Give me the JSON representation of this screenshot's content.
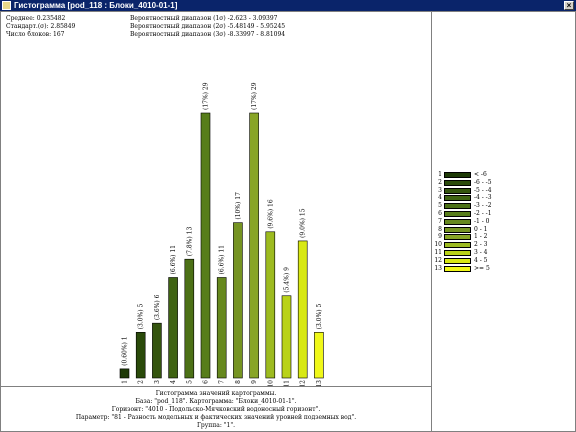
{
  "window": {
    "title": "Гистограмма [pod_118 : Блоки_4010-01-1]",
    "close_glyph": "×",
    "app_icon": "histogram-app-icon"
  },
  "stats": {
    "mean": "Среднее: 0.235482",
    "stddev": "Стандарт.(σ): 2.85849",
    "count": "Число блоков: 167",
    "range1": "Вероятностный диапазон (1σ) -2.623 - 3.09397",
    "range2": "Вероятностный диапазон (2σ) -5.48149 - 5.95245",
    "range3": "Вероятностный диапазон (3σ) -8.33997 - 8.81094"
  },
  "caption": [
    "Гистограмма значений картограммы.",
    "База: \"pod_118\". Картограмма: \"Блоки_4010-01-1\".",
    "Горизонт: \"4010 - Подольско-Мячковский водоносный горизонт\".",
    "Параметр: \"81 - Разность модельных и фактических значений уровней подземных вод\".",
    "Группа: \"1\"."
  ],
  "chart_data": {
    "type": "bar",
    "categories": [
      "1",
      "2",
      "3",
      "4",
      "5",
      "6",
      "7",
      "8",
      "9",
      "10",
      "11",
      "12",
      "13"
    ],
    "values": [
      1,
      5,
      6,
      11,
      13,
      29,
      11,
      17,
      29,
      16,
      9,
      15,
      5
    ],
    "bar_labels": [
      "(0.60%) 1",
      "(3.0%) 5",
      "(3.6%) 6",
      "(6.6%) 11",
      "(7.8%) 13",
      "(17%) 29",
      "(6.6%) 11",
      "(10%) 17",
      "(17%) 29",
      "(9.6%) 16",
      "(5.4%) 9",
      "(9.0%) 15",
      "(3.0%) 5"
    ],
    "colors": [
      "#1e3a06",
      "#2a4a0a",
      "#34550e",
      "#3f6312",
      "#4b7016",
      "#577d1a",
      "#66881e",
      "#769422",
      "#88a526",
      "#9dbb20",
      "#b9d218",
      "#d8e814",
      "#f0f818"
    ],
    "ylim": [
      0,
      29
    ],
    "grid": false,
    "legend_position": "right"
  },
  "legend": {
    "items": [
      {
        "num": "1",
        "label": "< -6"
      },
      {
        "num": "2",
        "label": "-6 - -5"
      },
      {
        "num": "3",
        "label": "-5 - -4"
      },
      {
        "num": "4",
        "label": "-4 - -3"
      },
      {
        "num": "5",
        "label": "-3 - -2"
      },
      {
        "num": "6",
        "label": "-2 - -1"
      },
      {
        "num": "7",
        "label": "-1 - 0"
      },
      {
        "num": "8",
        "label": "0 - 1"
      },
      {
        "num": "9",
        "label": "1 - 2"
      },
      {
        "num": "10",
        "label": "2 - 3"
      },
      {
        "num": "11",
        "label": "3 - 4"
      },
      {
        "num": "12",
        "label": "4 - 5"
      },
      {
        "num": "13",
        "label": ">= 5"
      }
    ]
  }
}
